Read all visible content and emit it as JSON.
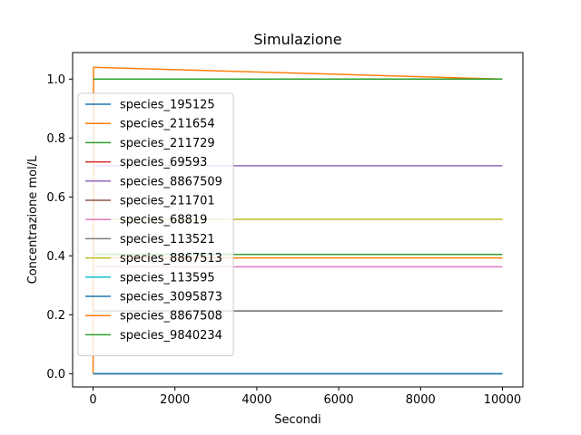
{
  "chart_data": {
    "type": "line",
    "title": "Simulazione",
    "xlabel": "Secondi",
    "ylabel": "Concentrazione mol/L",
    "xlim": [
      -500,
      10500
    ],
    "ylim": [
      -0.045,
      1.09
    ],
    "xticks": [
      0,
      2000,
      4000,
      6000,
      8000,
      10000
    ],
    "xtick_labels": [
      "0",
      "2000",
      "4000",
      "6000",
      "8000",
      "10000"
    ],
    "yticks": [
      0.0,
      0.2,
      0.4,
      0.6,
      0.8,
      1.0
    ],
    "ytick_labels": [
      "0.0",
      "0.2",
      "0.4",
      "0.6",
      "0.8",
      "1.0"
    ],
    "grid": false,
    "legend_position": "center-left",
    "series": [
      {
        "name": "species_195125",
        "color": "#1f77b4",
        "x": [
          0,
          10000
        ],
        "y": [
          0.0,
          0.0
        ]
      },
      {
        "name": "species_211654",
        "color": "#ff7f0e",
        "x": [
          0,
          10,
          10000
        ],
        "y": [
          0.0,
          1.04,
          1.0
        ]
      },
      {
        "name": "species_211729",
        "color": "#2ca02c",
        "x": [
          0,
          10000
        ],
        "y": [
          1.0,
          1.0
        ]
      },
      {
        "name": "species_69593",
        "color": "#d62728",
        "x": [
          0,
          10000
        ],
        "y": [
          0.0,
          0.0
        ]
      },
      {
        "name": "species_8867509",
        "color": "#9467bd",
        "x": [
          0,
          10000
        ],
        "y": [
          0.706,
          0.706
        ]
      },
      {
        "name": "species_211701",
        "color": "#8c564b",
        "x": [
          0,
          10000
        ],
        "y": [
          0.213,
          0.213
        ]
      },
      {
        "name": "species_68819",
        "color": "#e377c2",
        "x": [
          0,
          10000
        ],
        "y": [
          0.363,
          0.363
        ]
      },
      {
        "name": "species_113521",
        "color": "#7f7f7f",
        "x": [
          0,
          10000
        ],
        "y": [
          0.213,
          0.213
        ]
      },
      {
        "name": "species_8867513",
        "color": "#bcbd22",
        "x": [
          0,
          10000
        ],
        "y": [
          0.524,
          0.524
        ]
      },
      {
        "name": "species_113595",
        "color": "#17becf",
        "x": [
          0,
          10000
        ],
        "y": [
          0.0,
          0.0
        ]
      },
      {
        "name": "species_3095873",
        "color": "#1f77b4",
        "x": [
          0,
          10000
        ],
        "y": [
          0.0,
          0.0
        ]
      },
      {
        "name": "species_8867508",
        "color": "#ff7f0e",
        "x": [
          0,
          10000
        ],
        "y": [
          0.393,
          0.393
        ]
      },
      {
        "name": "species_9840234",
        "color": "#2ca02c",
        "x": [
          0,
          10000
        ],
        "y": [
          0.405,
          0.405
        ]
      }
    ]
  }
}
